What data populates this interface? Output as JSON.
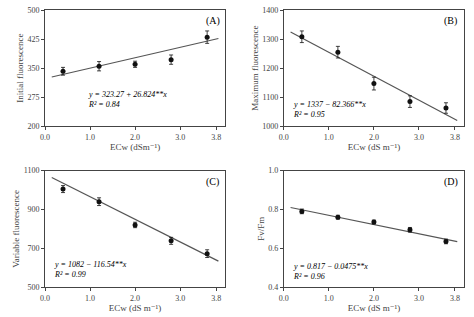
{
  "chart_data": [
    {
      "type": "scatter",
      "xlabel": "ECw (dSm⁻¹)",
      "ylabel": "Initial fluorescence",
      "xlim": [
        0.0,
        4.0
      ],
      "ylim": [
        200,
        500
      ],
      "xticks": [
        {
          "value": 0,
          "label": "0.0"
        },
        {
          "value": 1,
          "label": "1.0"
        },
        {
          "value": 2,
          "label": "2.0"
        },
        {
          "value": 3,
          "label": "3.0"
        },
        3.8
      ],
      "yticks": [
        200,
        275,
        350,
        425,
        500
      ],
      "grid": false,
      "series": [
        {
          "type": "line",
          "color": "#555555",
          "x": [
            0.15,
            3.85
          ],
          "values": [
            327.2936,
            426.5424
          ]
        },
        {
          "type": "scatter",
          "marker": "circle",
          "color": "#111111",
          "x": [
            0.4,
            1.2,
            2.0,
            2.8,
            3.6
          ],
          "values": [
            342,
            355,
            360,
            372,
            430
          ],
          "errors": [
            10,
            12,
            8,
            12,
            16
          ]
        }
      ],
      "annotations": [
        {
          "text": "(A)"
        },
        {
          "text": "y = 323.27 + 26.824**x\nR² = 0.84",
          "x": 0.9,
          "y": 240
        }
      ]
    },
    {
      "type": "scatter",
      "xlabel": "ECw (dS m⁻¹)",
      "ylabel": "Maximum fluorescence",
      "xlim": [
        0.0,
        4.0
      ],
      "ylim": [
        1000,
        1400
      ],
      "xticks": [
        {
          "value": 0,
          "label": "0.0"
        },
        {
          "value": 1,
          "label": "1.0"
        },
        {
          "value": 2,
          "label": "2.0"
        },
        {
          "value": 3,
          "label": "3.0"
        },
        3.8
      ],
      "yticks": [
        1000,
        1100,
        1200,
        1300,
        1400
      ],
      "grid": false,
      "series": [
        {
          "type": "line",
          "color": "#555555",
          "x": [
            0.15,
            3.85
          ],
          "values": [
            1324.6451,
            1019.8909
          ]
        },
        {
          "type": "scatter",
          "marker": "circle",
          "color": "#111111",
          "x": [
            0.4,
            1.2,
            2.0,
            2.8,
            3.6
          ],
          "values": [
            1308,
            1255,
            1147,
            1085,
            1063
          ],
          "errors": [
            20,
            20,
            22,
            20,
            18
          ]
        }
      ],
      "annotations": [
        {
          "text": "(B)"
        },
        {
          "text": "y = 1337 − 82.366**x\nR² = 0.95",
          "x": 0.15,
          "y": 1018
        }
      ]
    },
    {
      "type": "scatter",
      "xlabel": "ECw (dS m⁻¹)",
      "ylabel": "Variable fluorescence",
      "xlim": [
        0.0,
        4.0
      ],
      "ylim": [
        500,
        1100
      ],
      "xticks": [
        {
          "value": 0,
          "label": "0.0"
        },
        {
          "value": 1,
          "label": "1.0"
        },
        {
          "value": 2,
          "label": "2.0"
        },
        {
          "value": 3,
          "label": "3.0"
        },
        3.8
      ],
      "yticks": [
        500,
        700,
        900,
        1100
      ],
      "grid": false,
      "series": [
        {
          "type": "line",
          "color": "#555555",
          "x": [
            0.15,
            3.85
          ],
          "values": [
            1064.519,
            633.321
          ]
        },
        {
          "type": "scatter",
          "marker": "circle",
          "color": "#111111",
          "x": [
            0.4,
            1.2,
            2.0,
            2.8,
            3.6
          ],
          "values": [
            1005,
            940,
            820,
            738,
            672
          ],
          "errors": [
            18,
            20,
            14,
            18,
            20
          ]
        }
      ],
      "annotations": [
        {
          "text": "(C)"
        },
        {
          "text": "y = 1082 − 116.54**x\nR² = 0.99",
          "x": 0.15,
          "y": 530
        }
      ]
    },
    {
      "type": "scatter",
      "xlabel": "ECw (dS m⁻¹)",
      "ylabel": "Fv/Fm",
      "xlim": [
        0.0,
        4.0
      ],
      "ylim": [
        0.4,
        1.0
      ],
      "xticks": [
        {
          "value": 0,
          "label": "0.0"
        },
        {
          "value": 1,
          "label": "1.0"
        },
        {
          "value": 2,
          "label": "2.0"
        },
        {
          "value": 3,
          "label": "3.0"
        },
        3.8
      ],
      "yticks": [
        0.4,
        0.6,
        0.8,
        {
          "value": 1,
          "label": "1.0"
        }
      ],
      "grid": false,
      "series": [
        {
          "type": "line",
          "color": "#555555",
          "x": [
            0.15,
            3.85
          ],
          "values": [
            0.809875,
            0.634125
          ]
        },
        {
          "type": "scatter",
          "marker": "circle",
          "color": "#111111",
          "x": [
            0.4,
            1.2,
            2.0,
            2.8,
            3.6
          ],
          "values": [
            0.79,
            0.76,
            0.735,
            0.695,
            0.635
          ],
          "errors": [
            0.012,
            0.01,
            0.01,
            0.012,
            0.012
          ]
        }
      ],
      "annotations": [
        {
          "text": "(D)"
        },
        {
          "text": "y = 0.817 − 0.0475**x\nR² = 0.96",
          "x": 0.15,
          "y": 0.42
        }
      ]
    }
  ]
}
